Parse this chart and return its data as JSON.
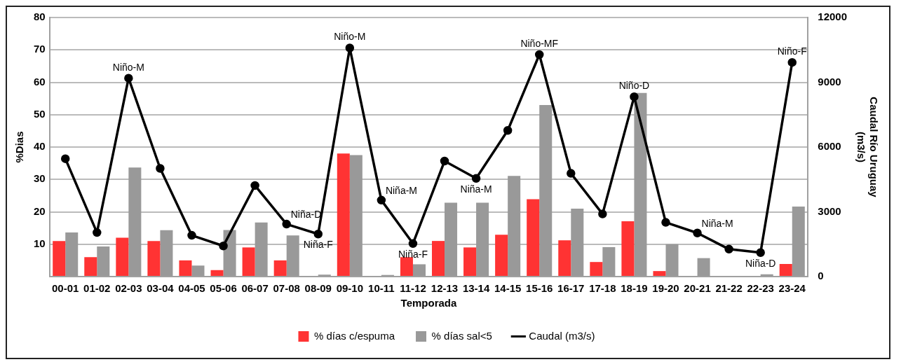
{
  "chart_data": {
    "type": "bar",
    "xlabel": "Temporada",
    "ylabel": "%Dias",
    "y2label": "Caudal Río Uruguay\n(m3/s)",
    "categories": [
      "00-01",
      "01-02",
      "02-03",
      "03-04",
      "04-05",
      "05-06",
      "06-07",
      "07-08",
      "08-09",
      "09-10",
      "10-11",
      "11-12",
      "12-13",
      "13-14",
      "14-15",
      "15-16",
      "16-17",
      "17-18",
      "18-19",
      "19-20",
      "20-21",
      "21-22",
      "22-23",
      "23-24"
    ],
    "series": [
      {
        "name": "% días c/espuma",
        "color": "#ff3333",
        "values": [
          11,
          6,
          12,
          11,
          5,
          2,
          9,
          5,
          0,
          38,
          0,
          6,
          11,
          9,
          12.9,
          23.9,
          11.2,
          4.5,
          17.1,
          1.7,
          0,
          0,
          0,
          3.9
        ]
      },
      {
        "name": "% días sal<5",
        "color": "#999999",
        "values": [
          13.6,
          9.3,
          33.7,
          14.3,
          3.4,
          14.4,
          16.7,
          12.7,
          0.6,
          37.5,
          0.5,
          3.8,
          22.8,
          22.8,
          31.1,
          53,
          21,
          9.1,
          56.7,
          10,
          5.7,
          0,
          0.7,
          21.6
        ]
      },
      {
        "name": "Caudal (m3/s)",
        "type": "line",
        "axis": "y2",
        "color": "#000000",
        "values": [
          5460,
          2040,
          9190,
          5010,
          1910,
          1420,
          4220,
          2430,
          1970,
          10590,
          3540,
          1530,
          5350,
          4550,
          6770,
          10280,
          4780,
          2900,
          8330,
          2510,
          2020,
          1270,
          1110,
          9920
        ],
        "value_labels": [
          null,
          null,
          "Niño-M",
          null,
          null,
          null,
          null,
          "Niña-D",
          "Niña-F",
          "Niño-M",
          "Niña-M",
          "Niña-F",
          null,
          "Niña-M",
          null,
          "Niño-MF",
          null,
          null,
          "Niño-D",
          null,
          "Niña-M",
          null,
          "Niña-D",
          "Niño-F"
        ]
      }
    ],
    "ylim": [
      0,
      80
    ],
    "yticks": [
      {
        "value": 0,
        "label": null
      },
      10,
      20,
      30,
      40,
      50,
      60,
      70,
      80
    ],
    "y2lim": [
      0,
      12000
    ],
    "y2ticks": [
      0,
      3000,
      6000,
      9000,
      12000
    ],
    "grid": "y",
    "legend": "bottom",
    "marker": "circle",
    "line_style": "solid"
  }
}
